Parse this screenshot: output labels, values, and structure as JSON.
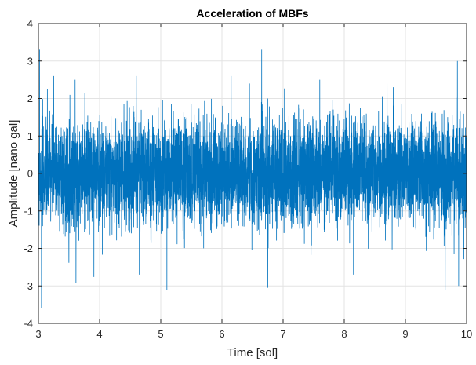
{
  "chart_data": {
    "type": "line",
    "title": "Acceleration of MBFs",
    "xlabel": "Time [sol]",
    "ylabel": "Amplitude [nano gal]",
    "xlim": [
      3,
      10
    ],
    "ylim": [
      -4,
      4
    ],
    "xticks": [
      3,
      4,
      5,
      6,
      7,
      8,
      9,
      10
    ],
    "yticks": [
      -4,
      -3,
      -2,
      -1,
      0,
      1,
      2,
      3,
      4
    ],
    "xtick_labels": [
      "3",
      "4",
      "5",
      "6",
      "7",
      "8",
      "9",
      "10"
    ],
    "ytick_labels": [
      "-4",
      "-3",
      "-2",
      "-1",
      "0",
      "1",
      "2",
      "3",
      "4"
    ],
    "grid": true,
    "legend": "none",
    "series": [
      {
        "color": "#0072BD",
        "description_of_signal": "",
        "x_start": 3,
        "x_end": 10,
        "typical_band": [
          -1.5,
          1.5
        ],
        "extremes": [
          {
            "x": 3.02,
            "y": 3.3
          },
          {
            "x": 3.05,
            "y": -3.6
          },
          {
            "x": 3.25,
            "y": 2.6
          },
          {
            "x": 3.6,
            "y": 2.5
          },
          {
            "x": 4.6,
            "y": 2.6
          },
          {
            "x": 4.65,
            "y": -2.7
          },
          {
            "x": 5.1,
            "y": -3.1
          },
          {
            "x": 6.15,
            "y": 2.6
          },
          {
            "x": 6.45,
            "y": 2.4
          },
          {
            "x": 6.65,
            "y": 3.3
          },
          {
            "x": 6.75,
            "y": -3.05
          },
          {
            "x": 7.6,
            "y": 2.5
          },
          {
            "x": 8.15,
            "y": -2.7
          },
          {
            "x": 8.7,
            "y": 2.4
          },
          {
            "x": 8.8,
            "y": 2.3
          },
          {
            "x": 9.65,
            "y": -3.1
          },
          {
            "x": 9.85,
            "y": 3.0
          },
          {
            "x": 9.87,
            "y": -3.0
          }
        ]
      }
    ]
  }
}
